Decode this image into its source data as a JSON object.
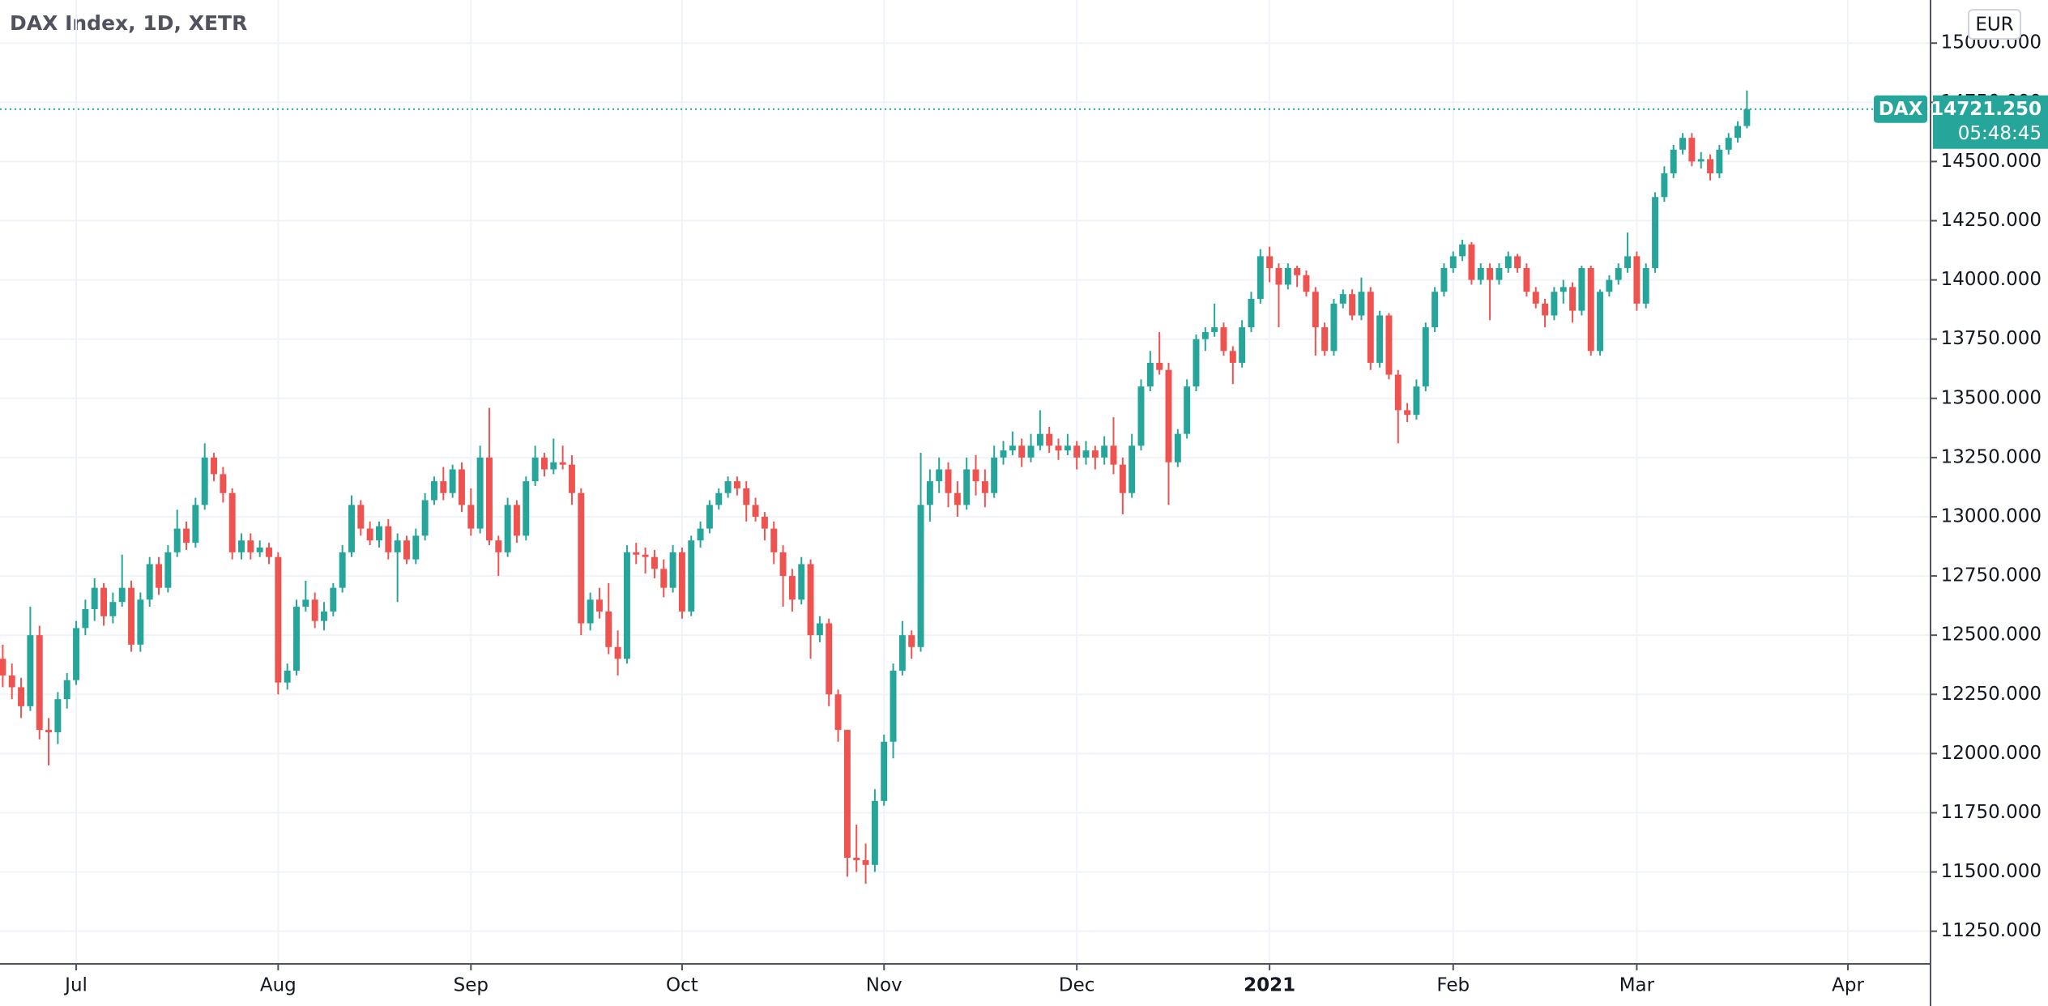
{
  "chart_data": {
    "type": "candlestick",
    "title": "DAX Index, 1D, XETR",
    "currency": "EUR",
    "symbol": "DAX",
    "last_price": {
      "value": 14721.25,
      "label": "14721.250"
    },
    "countdown": "05:48:45",
    "up_color": "#26a69a",
    "down_color": "#ef5350",
    "grid": true,
    "xlim": [
      -0.3,
      210
    ],
    "xticks": [
      {
        "value": 8,
        "label": "Jul"
      },
      {
        "value": 30,
        "label": "Aug"
      },
      {
        "value": 51,
        "label": "Sep"
      },
      {
        "value": 74,
        "label": "Oct"
      },
      {
        "value": 96,
        "label": "Nov"
      },
      {
        "value": 117,
        "label": "Dec"
      },
      {
        "value": 138,
        "label": "2021"
      },
      {
        "value": 158,
        "label": "Feb"
      },
      {
        "value": 178,
        "label": "Mar"
      },
      {
        "value": 201,
        "label": "Apr"
      }
    ],
    "ylim": [
      11112,
      15182
    ],
    "yticks": [
      {
        "value": 11250,
        "label": "11250.000"
      },
      {
        "value": 11500,
        "label": "11500.000"
      },
      {
        "value": 11750,
        "label": "11750.000"
      },
      {
        "value": 12000,
        "label": "12000.000"
      },
      {
        "value": 12250,
        "label": "12250.000"
      },
      {
        "value": 12500,
        "label": "12500.000"
      },
      {
        "value": 12750,
        "label": "12750.000"
      },
      {
        "value": 13000,
        "label": "13000.000"
      },
      {
        "value": 13250,
        "label": "13250.000"
      },
      {
        "value": 13500,
        "label": "13500.000"
      },
      {
        "value": 13750,
        "label": "13750.000"
      },
      {
        "value": 14000,
        "label": "14000.000"
      },
      {
        "value": 14250,
        "label": "14250.000"
      },
      {
        "value": 14500,
        "label": "14500.000"
      },
      {
        "value": 14750,
        "label": "14750.000"
      },
      {
        "value": 15000,
        "label": "15000.000"
      }
    ],
    "ohlc": [
      [
        12400,
        12460,
        12280,
        12330
      ],
      [
        12330,
        12380,
        12230,
        12280
      ],
      [
        12280,
        12320,
        12150,
        12200
      ],
      [
        12200,
        12620,
        12180,
        12500
      ],
      [
        12500,
        12540,
        12060,
        12100
      ],
      [
        12100,
        12150,
        11950,
        12090
      ],
      [
        12090,
        12260,
        12040,
        12230
      ],
      [
        12230,
        12340,
        12190,
        12310
      ],
      [
        12310,
        12560,
        12290,
        12530
      ],
      [
        12530,
        12650,
        12500,
        12610
      ],
      [
        12610,
        12740,
        12560,
        12700
      ],
      [
        12700,
        12720,
        12540,
        12580
      ],
      [
        12580,
        12680,
        12550,
        12640
      ],
      [
        12640,
        12840,
        12620,
        12700
      ],
      [
        12700,
        12730,
        12430,
        12460
      ],
      [
        12460,
        12680,
        12430,
        12650
      ],
      [
        12650,
        12830,
        12620,
        12800
      ],
      [
        12800,
        12830,
        12670,
        12700
      ],
      [
        12700,
        12880,
        12680,
        12850
      ],
      [
        12850,
        13030,
        12830,
        12950
      ],
      [
        12950,
        12980,
        12860,
        12890
      ],
      [
        12890,
        13080,
        12870,
        13050
      ],
      [
        13050,
        13310,
        13030,
        13250
      ],
      [
        13250,
        13270,
        13150,
        13180
      ],
      [
        13180,
        13210,
        13060,
        13100
      ],
      [
        13100,
        13120,
        12820,
        12850
      ],
      [
        12850,
        12930,
        12820,
        12900
      ],
      [
        12900,
        12930,
        12820,
        12850
      ],
      [
        12850,
        12900,
        12830,
        12870
      ],
      [
        12870,
        12890,
        12800,
        12830
      ],
      [
        12830,
        12850,
        12250,
        12300
      ],
      [
        12300,
        12380,
        12270,
        12350
      ],
      [
        12350,
        12650,
        12330,
        12620
      ],
      [
        12620,
        12730,
        12600,
        12650
      ],
      [
        12650,
        12680,
        12530,
        12560
      ],
      [
        12560,
        12640,
        12520,
        12600
      ],
      [
        12600,
        12720,
        12580,
        12700
      ],
      [
        12700,
        12880,
        12680,
        12850
      ],
      [
        12850,
        13090,
        12830,
        13050
      ],
      [
        13050,
        13070,
        12920,
        12950
      ],
      [
        12950,
        12980,
        12880,
        12900
      ],
      [
        12900,
        12980,
        12870,
        12960
      ],
      [
        12960,
        12990,
        12820,
        12850
      ],
      [
        12850,
        12930,
        12640,
        12900
      ],
      [
        12900,
        12920,
        12800,
        12820
      ],
      [
        12820,
        12950,
        12800,
        12920
      ],
      [
        12920,
        13100,
        12900,
        13070
      ],
      [
        13070,
        13170,
        13050,
        13150
      ],
      [
        13150,
        13210,
        13070,
        13100
      ],
      [
        13100,
        13220,
        13080,
        13200
      ],
      [
        13200,
        13230,
        13020,
        13050
      ],
      [
        13050,
        13120,
        12920,
        12950
      ],
      [
        12950,
        13300,
        12930,
        13250
      ],
      [
        13250,
        13460,
        12880,
        12900
      ],
      [
        12900,
        12920,
        12750,
        12850
      ],
      [
        12850,
        13080,
        12830,
        13050
      ],
      [
        13050,
        13070,
        12890,
        12920
      ],
      [
        12920,
        13170,
        12900,
        13150
      ],
      [
        13150,
        13300,
        13130,
        13250
      ],
      [
        13250,
        13270,
        13170,
        13200
      ],
      [
        13200,
        13330,
        13180,
        13230
      ],
      [
        13230,
        13300,
        13200,
        13220
      ],
      [
        13220,
        13260,
        13050,
        13100
      ],
      [
        13100,
        13120,
        12500,
        12550
      ],
      [
        12550,
        12680,
        12520,
        12650
      ],
      [
        12650,
        12700,
        12570,
        12600
      ],
      [
        12600,
        12720,
        12420,
        12450
      ],
      [
        12450,
        12520,
        12330,
        12400
      ],
      [
        12400,
        12880,
        12380,
        12850
      ],
      [
        12850,
        12890,
        12800,
        12840
      ],
      [
        12840,
        12870,
        12760,
        12830
      ],
      [
        12830,
        12860,
        12740,
        12780
      ],
      [
        12780,
        12820,
        12660,
        12700
      ],
      [
        12700,
        12880,
        12680,
        12850
      ],
      [
        12850,
        12870,
        12570,
        12600
      ],
      [
        12600,
        12920,
        12580,
        12900
      ],
      [
        12900,
        12980,
        12870,
        12950
      ],
      [
        12950,
        13070,
        12930,
        13050
      ],
      [
        13050,
        13120,
        13030,
        13100
      ],
      [
        13100,
        13170,
        13080,
        13150
      ],
      [
        13150,
        13170,
        13090,
        13120
      ],
      [
        13120,
        13150,
        12980,
        13050
      ],
      [
        13050,
        13080,
        12980,
        13000
      ],
      [
        13000,
        13020,
        12900,
        12950
      ],
      [
        12950,
        12980,
        12800,
        12850
      ],
      [
        12850,
        12880,
        12620,
        12750
      ],
      [
        12750,
        12780,
        12600,
        12650
      ],
      [
        12650,
        12830,
        12630,
        12800
      ],
      [
        12800,
        12820,
        12400,
        12500
      ],
      [
        12500,
        12580,
        12470,
        12550
      ],
      [
        12550,
        12570,
        12200,
        12250
      ],
      [
        12250,
        12270,
        12050,
        12100
      ],
      [
        12100,
        12100,
        11480,
        11560
      ],
      [
        11560,
        11700,
        11500,
        11550
      ],
      [
        11550,
        11620,
        11450,
        11530
      ],
      [
        11530,
        11850,
        11500,
        11800
      ],
      [
        11800,
        12080,
        11780,
        12050
      ],
      [
        12050,
        12380,
        11980,
        12350
      ],
      [
        12350,
        12560,
        12330,
        12500
      ],
      [
        12500,
        12520,
        12400,
        12450
      ],
      [
        12450,
        13270,
        12430,
        13050
      ],
      [
        13050,
        13200,
        12980,
        13150
      ],
      [
        13150,
        13250,
        13100,
        13200
      ],
      [
        13200,
        13230,
        13040,
        13100
      ],
      [
        13100,
        13150,
        13000,
        13050
      ],
      [
        13050,
        13250,
        13030,
        13200
      ],
      [
        13200,
        13260,
        13090,
        13150
      ],
      [
        13150,
        13200,
        13040,
        13100
      ],
      [
        13100,
        13300,
        13080,
        13250
      ],
      [
        13250,
        13320,
        13220,
        13280
      ],
      [
        13280,
        13360,
        13260,
        13300
      ],
      [
        13300,
        13330,
        13210,
        13250
      ],
      [
        13250,
        13350,
        13230,
        13300
      ],
      [
        13300,
        13450,
        13280,
        13350
      ],
      [
        13350,
        13380,
        13270,
        13300
      ],
      [
        13300,
        13330,
        13240,
        13280
      ],
      [
        13280,
        13350,
        13260,
        13300
      ],
      [
        13300,
        13320,
        13200,
        13250
      ],
      [
        13250,
        13320,
        13220,
        13280
      ],
      [
        13280,
        13300,
        13200,
        13250
      ],
      [
        13250,
        13340,
        13220,
        13300
      ],
      [
        13300,
        13420,
        13180,
        13220
      ],
      [
        13220,
        13250,
        13010,
        13100
      ],
      [
        13100,
        13350,
        13080,
        13300
      ],
      [
        13300,
        13580,
        13280,
        13550
      ],
      [
        13550,
        13700,
        13530,
        13650
      ],
      [
        13650,
        13780,
        13600,
        13620
      ],
      [
        13620,
        13650,
        13050,
        13230
      ],
      [
        13230,
        13370,
        13210,
        13350
      ],
      [
        13350,
        13580,
        13330,
        13550
      ],
      [
        13550,
        13770,
        13530,
        13750
      ],
      [
        13750,
        13800,
        13700,
        13780
      ],
      [
        13780,
        13900,
        13760,
        13800
      ],
      [
        13800,
        13820,
        13680,
        13700
      ],
      [
        13700,
        13720,
        13560,
        13650
      ],
      [
        13650,
        13830,
        13630,
        13800
      ],
      [
        13800,
        13950,
        13780,
        13920
      ],
      [
        13920,
        14130,
        13900,
        14100
      ],
      [
        14100,
        14140,
        13990,
        14050
      ],
      [
        14050,
        14070,
        13800,
        13980
      ],
      [
        13980,
        14070,
        13960,
        14050
      ],
      [
        14050,
        14060,
        13970,
        14020
      ],
      [
        14020,
        14040,
        13930,
        13950
      ],
      [
        13950,
        13970,
        13680,
        13800
      ],
      [
        13800,
        13820,
        13680,
        13700
      ],
      [
        13700,
        13920,
        13680,
        13900
      ],
      [
        13900,
        13960,
        13880,
        13940
      ],
      [
        13940,
        13960,
        13830,
        13850
      ],
      [
        13850,
        14010,
        13830,
        13950
      ],
      [
        13950,
        13970,
        13620,
        13650
      ],
      [
        13650,
        13870,
        13630,
        13850
      ],
      [
        13850,
        13860,
        13580,
        13600
      ],
      [
        13600,
        13620,
        13310,
        13450
      ],
      [
        13450,
        13480,
        13400,
        13430
      ],
      [
        13430,
        13580,
        13410,
        13550
      ],
      [
        13550,
        13820,
        13530,
        13800
      ],
      [
        13800,
        13970,
        13780,
        13950
      ],
      [
        13950,
        14070,
        13930,
        14050
      ],
      [
        14050,
        14120,
        14030,
        14100
      ],
      [
        14100,
        14170,
        14080,
        14150
      ],
      [
        14150,
        14160,
        13980,
        14000
      ],
      [
        14000,
        14070,
        13980,
        14050
      ],
      [
        14050,
        14070,
        13830,
        14000
      ],
      [
        14000,
        14070,
        13980,
        14050
      ],
      [
        14050,
        14120,
        14030,
        14100
      ],
      [
        14100,
        14110,
        14030,
        14050
      ],
      [
        14050,
        14070,
        13930,
        13950
      ],
      [
        13950,
        13970,
        13880,
        13900
      ],
      [
        13900,
        13920,
        13800,
        13850
      ],
      [
        13850,
        13970,
        13830,
        13950
      ],
      [
        13950,
        14000,
        13900,
        13970
      ],
      [
        13970,
        13990,
        13820,
        13870
      ],
      [
        13870,
        14060,
        13850,
        14050
      ],
      [
        14050,
        14060,
        13680,
        13700
      ],
      [
        13700,
        13960,
        13680,
        13950
      ],
      [
        13950,
        14020,
        13930,
        14000
      ],
      [
        14000,
        14070,
        13980,
        14050
      ],
      [
        14050,
        14200,
        14030,
        14100
      ],
      [
        14100,
        14120,
        13870,
        13900
      ],
      [
        13900,
        14070,
        13880,
        14050
      ],
      [
        14050,
        14370,
        14030,
        14350
      ],
      [
        14350,
        14480,
        14330,
        14450
      ],
      [
        14450,
        14570,
        14430,
        14550
      ],
      [
        14550,
        14620,
        14530,
        14600
      ],
      [
        14600,
        14620,
        14480,
        14500
      ],
      [
        14500,
        14540,
        14470,
        14510
      ],
      [
        14510,
        14530,
        14420,
        14450
      ],
      [
        14450,
        14570,
        14430,
        14550
      ],
      [
        14550,
        14620,
        14530,
        14600
      ],
      [
        14600,
        14670,
        14580,
        14650
      ],
      [
        14650,
        14800,
        14640,
        14721.25
      ]
    ]
  }
}
